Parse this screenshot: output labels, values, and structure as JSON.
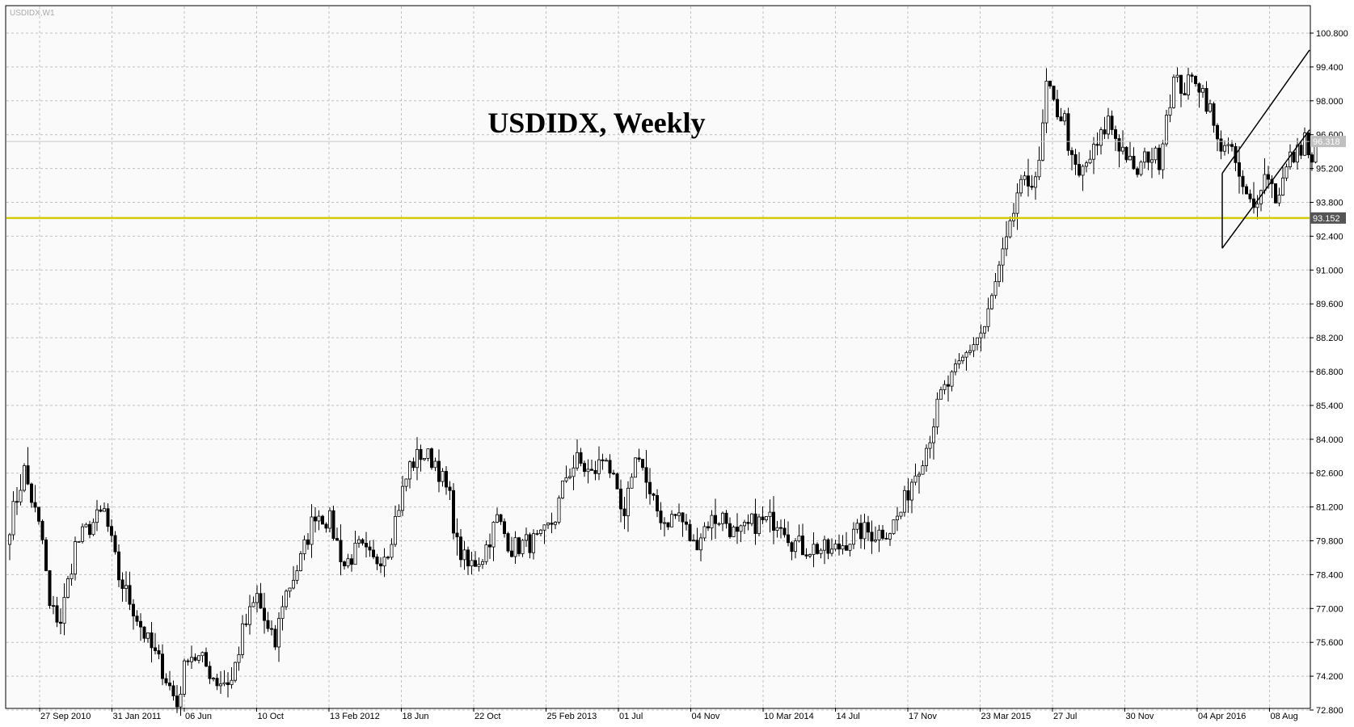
{
  "window": {
    "caption": "USDIDX,W1"
  },
  "chart_data": {
    "type": "candlestick",
    "title": "USDIDX, Weekly",
    "symbol": "USDIDX",
    "timeframe": "Weekly",
    "ylim": [
      71.4,
      102.2
    ],
    "y_ticks": [
      "100.800",
      "99.400",
      "98.000",
      "96.600",
      "95.200",
      "93.800",
      "92.400",
      "91.000",
      "89.600",
      "88.200",
      "86.800",
      "85.400",
      "84.000",
      "82.600",
      "81.200",
      "79.800",
      "78.400",
      "77.000",
      "75.600",
      "74.200",
      "72.800"
    ],
    "x_ticks": [
      "27 Sep 2010",
      "31 Jan 2011",
      "06 Jun",
      "10 Oct",
      "13 Feb 2012",
      "18 Jun",
      "22 Oct",
      "25 Feb 2013",
      "01 Jul",
      "04 Nov",
      "10 Mar 2014",
      "14 Jul",
      "17 Nov",
      "23 Mar 2015",
      "27 Jul",
      "30 Nov",
      "04 Apr 2016",
      "08 Aug"
    ],
    "close_anchors": [
      [
        0,
        80.5
      ],
      [
        4,
        82.7
      ],
      [
        9,
        79.8
      ],
      [
        11,
        77.0
      ],
      [
        14,
        76.5
      ],
      [
        18,
        79.6
      ],
      [
        22,
        80.4
      ],
      [
        26,
        81.0
      ],
      [
        30,
        78.3
      ],
      [
        34,
        77.0
      ],
      [
        38,
        75.6
      ],
      [
        42,
        74.5
      ],
      [
        46,
        73.0
      ],
      [
        49,
        75.2
      ],
      [
        53,
        74.8
      ],
      [
        57,
        74.0
      ],
      [
        61,
        74.0
      ],
      [
        64,
        76.0
      ],
      [
        68,
        77.5
      ],
      [
        71,
        76.0
      ],
      [
        73,
        75.5
      ],
      [
        75,
        77.3
      ],
      [
        80,
        79.0
      ],
      [
        84,
        81.0
      ],
      [
        88,
        80.6
      ],
      [
        92,
        78.8
      ],
      [
        96,
        79.5
      ],
      [
        100,
        78.9
      ],
      [
        104,
        79.5
      ],
      [
        107,
        81.3
      ],
      [
        110,
        82.9
      ],
      [
        113,
        83.4
      ],
      [
        117,
        83.1
      ],
      [
        121,
        81.5
      ],
      [
        123,
        79.6
      ],
      [
        126,
        78.7
      ],
      [
        130,
        79.2
      ],
      [
        134,
        80.7
      ],
      [
        138,
        79.5
      ],
      [
        142,
        79.7
      ],
      [
        146,
        79.8
      ],
      [
        150,
        80.8
      ],
      [
        153,
        82.5
      ],
      [
        156,
        83.1
      ],
      [
        160,
        82.5
      ],
      [
        164,
        83.4
      ],
      [
        167,
        81.5
      ],
      [
        169,
        80.5
      ],
      [
        171,
        82.7
      ],
      [
        173,
        83.5
      ],
      [
        176,
        81.5
      ],
      [
        180,
        80.6
      ],
      [
        184,
        80.9
      ],
      [
        188,
        79.6
      ],
      [
        192,
        80.6
      ],
      [
        196,
        80.8
      ],
      [
        200,
        79.9
      ],
      [
        204,
        80.5
      ],
      [
        208,
        80.6
      ],
      [
        212,
        80.7
      ],
      [
        215,
        79.8
      ],
      [
        218,
        79.5
      ],
      [
        222,
        79.5
      ],
      [
        226,
        79.3
      ],
      [
        230,
        79.8
      ],
      [
        234,
        80.2
      ],
      [
        238,
        80.1
      ],
      [
        242,
        80.3
      ],
      [
        245,
        81.0
      ],
      [
        248,
        82.3
      ],
      [
        252,
        83.7
      ],
      [
        256,
        85.8
      ],
      [
        260,
        86.7
      ],
      [
        264,
        87.8
      ],
      [
        268,
        88.6
      ],
      [
        272,
        91.0
      ],
      [
        275,
        92.6
      ],
      [
        277,
        94.2
      ],
      [
        280,
        94.6
      ],
      [
        283,
        95.2
      ],
      [
        285,
        98.6
      ],
      [
        287,
        97.8
      ],
      [
        290,
        97.2
      ],
      [
        292,
        95.4
      ],
      [
        294,
        94.8
      ],
      [
        296,
        95.4
      ],
      [
        299,
        96.1
      ],
      [
        302,
        97.2
      ],
      [
        305,
        96.2
      ],
      [
        307,
        95.8
      ],
      [
        309,
        94.9
      ],
      [
        311,
        95.3
      ],
      [
        313,
        95.8
      ],
      [
        316,
        95.6
      ],
      [
        318,
        97.5
      ],
      [
        320,
        98.8
      ],
      [
        323,
        98.5
      ],
      [
        326,
        99.0
      ],
      [
        328,
        98.4
      ],
      [
        330,
        97.6
      ],
      [
        332,
        96.2
      ],
      [
        334,
        96.3
      ],
      [
        337,
        95.4
      ],
      [
        339,
        94.2
      ],
      [
        342,
        93.5
      ],
      [
        344,
        94.7
      ],
      [
        346,
        95.0
      ],
      [
        348,
        94.0
      ],
      [
        350,
        94.7
      ],
      [
        352,
        95.6
      ],
      [
        354,
        95.8
      ],
      [
        356,
        96.5
      ],
      [
        358,
        95.2
      ],
      [
        359,
        96.2
      ]
    ],
    "current_price": "96.318",
    "support_level": "93.152",
    "colors": {
      "background": "#fafafa",
      "grid": "#c0c0c0",
      "axis": "#000000",
      "candle_up": "#ffffff",
      "candle_down": "#000000",
      "support_line": "#d2cc00",
      "price_line": "#c8c8c8",
      "price_label_bg": "#c0c0c0",
      "support_label_bg": "#555555"
    }
  }
}
